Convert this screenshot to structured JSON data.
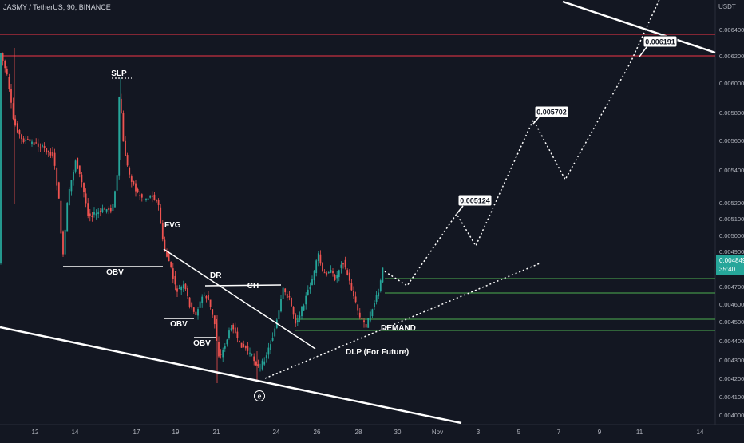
{
  "header": {
    "symbol_text": "JASMY / TetherUS, 90, BINANCE"
  },
  "price_axis": {
    "unit": "USDT",
    "ticks": [
      "0.006400",
      "0.006200",
      "0.006000",
      "0.005800",
      "0.005600",
      "0.005400",
      "0.005200",
      "0.005100",
      "0.005000",
      "0.004900",
      "0.004800",
      "0.004700",
      "0.004600",
      "0.004500",
      "0.004400",
      "0.004300",
      "0.004200",
      "0.004100",
      "0.004000"
    ],
    "last_price": "0.004849",
    "countdown": "35:40"
  },
  "time_axis": {
    "ticks": [
      "12",
      "14",
      "17",
      "19",
      "21",
      "24",
      "26",
      "28",
      "30",
      "Nov",
      "3",
      "5",
      "7",
      "9",
      "11",
      "14"
    ]
  },
  "colors": {
    "background": "#131722",
    "bull": "#26a69a",
    "bear": "#ef5350",
    "resistance": "#f23645",
    "demand_lines": "#4caf50",
    "annotation": "#ffffff"
  },
  "chart_data": {
    "type": "candlestick",
    "title": "JASMY / TetherUS, 90, BINANCE",
    "y_unit": "USDT",
    "ylim": [
      0.004,
      0.0066
    ],
    "approximate_close_path": [
      {
        "date": "Oct 11",
        "close": 0.00627
      },
      {
        "date": "Oct 12",
        "close": 0.0056
      },
      {
        "date": "Oct 13",
        "close": 0.00555
      },
      {
        "date": "Oct 14",
        "close": 0.00545
      },
      {
        "date": "Oct 15",
        "close": 0.0051
      },
      {
        "date": "Oct 16",
        "close": 0.0052
      },
      {
        "date": "Oct 17",
        "close": 0.0056
      },
      {
        "date": "Oct 18",
        "close": 0.0052
      },
      {
        "date": "Oct 19",
        "close": 0.0047
      },
      {
        "date": "Oct 20",
        "close": 0.0046
      },
      {
        "date": "Oct 21",
        "close": 0.0043
      },
      {
        "date": "Oct 22",
        "close": 0.0044
      },
      {
        "date": "Oct 23",
        "close": 0.0044
      },
      {
        "date": "Oct 24",
        "close": 0.0047
      },
      {
        "date": "Oct 25",
        "close": 0.0046
      },
      {
        "date": "Oct 26",
        "close": 0.0049
      },
      {
        "date": "Oct 27",
        "close": 0.0048
      },
      {
        "date": "Oct 28",
        "close": 0.0046
      },
      {
        "date": "Oct 29",
        "close": 0.00485
      }
    ],
    "resistance_levels": [
      0.00637,
      0.0062
    ],
    "demand_levels": [
      0.00475,
      0.00467,
      0.0045,
      0.00446
    ],
    "projection_targets": [
      "0.005124",
      "0.005702",
      "0.006191"
    ],
    "labels": [
      "SLP",
      "FVG",
      "OBV",
      "OBV",
      "OBV",
      "DR",
      "CH",
      "DEMAND",
      "DLP (For Future)",
      "e"
    ]
  },
  "annotations": {
    "slp": "SLP",
    "fvg": "FVG",
    "obv1": "OBV",
    "obv2": "OBV",
    "obv3": "OBV",
    "dr": "DR",
    "ch": "CH",
    "demand": "DEMAND",
    "dlp": "DLP (For Future)",
    "e": "e",
    "target1": "0.005124",
    "target2": "0.005702",
    "target3": "0.006191"
  }
}
